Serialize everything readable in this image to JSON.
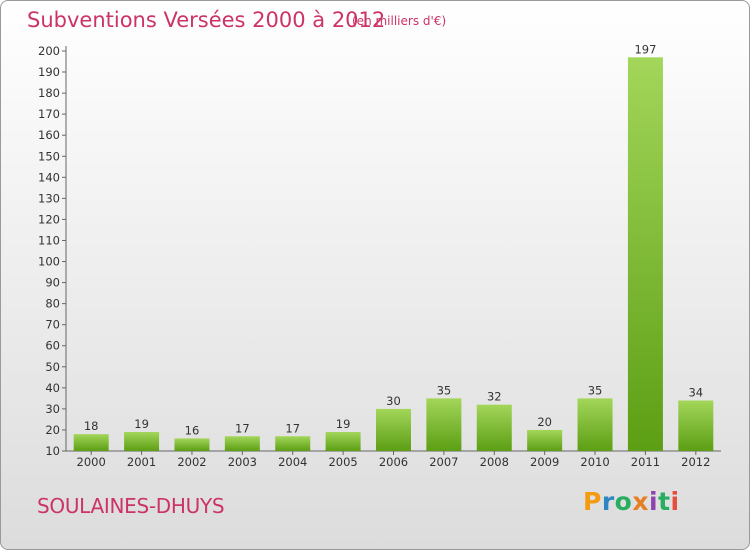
{
  "title": "Subventions Versées 2000 à 2012",
  "unit": "(en milliers d'€)",
  "commune": "SOULAINES-DHUYS",
  "logo": {
    "letters": [
      "P",
      "r",
      "o",
      "x",
      "i",
      "t",
      "i"
    ],
    "colors": [
      "#f39c12",
      "#2e86c1",
      "#27ae60",
      "#e67e22",
      "#8e44ad",
      "#27ae60",
      "#e74c3c"
    ]
  },
  "chart_data": {
    "type": "bar",
    "title": "Subventions Versées 2000 à 2012",
    "xlabel": "",
    "ylabel": "",
    "categories": [
      "2000",
      "2001",
      "2002",
      "2003",
      "2004",
      "2005",
      "2006",
      "2007",
      "2008",
      "2009",
      "2010",
      "2011",
      "2012"
    ],
    "values": [
      18,
      19,
      16,
      17,
      17,
      19,
      30,
      35,
      32,
      20,
      35,
      197,
      34
    ],
    "data_labels": [
      "18",
      "19",
      "16",
      "17",
      "17",
      "19",
      "30",
      "35",
      "32",
      "20",
      "35",
      "197",
      "34"
    ],
    "ylim": [
      10,
      200
    ],
    "yticks": [
      10,
      20,
      30,
      40,
      50,
      60,
      70,
      80,
      90,
      100,
      110,
      120,
      130,
      140,
      150,
      160,
      170,
      180,
      190,
      200
    ],
    "grid": false,
    "legend": "none",
    "bar_color": "#7dbb2e"
  }
}
